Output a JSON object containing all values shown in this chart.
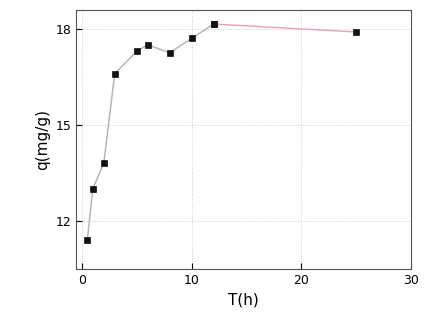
{
  "x": [
    0.5,
    1,
    2,
    3,
    5,
    6,
    8,
    10,
    12,
    25
  ],
  "y": [
    11.4,
    13.0,
    13.8,
    16.6,
    17.3,
    17.5,
    17.25,
    17.7,
    18.15,
    17.9
  ],
  "xlabel": "T(h)",
  "ylabel": "q(mg/g)",
  "xlim": [
    -0.5,
    30
  ],
  "ylim": [
    10.5,
    18.6
  ],
  "xticks": [
    0,
    10,
    20,
    30
  ],
  "yticks": [
    12,
    15,
    18
  ],
  "line_color_1": "#b0b0b0",
  "line_color_2": "#e8a0b0",
  "segment_split": 8,
  "marker_color": "#111111",
  "marker": "s",
  "marker_size": 5,
  "linewidth": 1.0,
  "grid": true,
  "grid_color": "#cccccc",
  "grid_linestyle": ":",
  "bg_color": "#ffffff",
  "xlabel_fontsize": 11,
  "ylabel_fontsize": 11,
  "tick_fontsize": 9
}
